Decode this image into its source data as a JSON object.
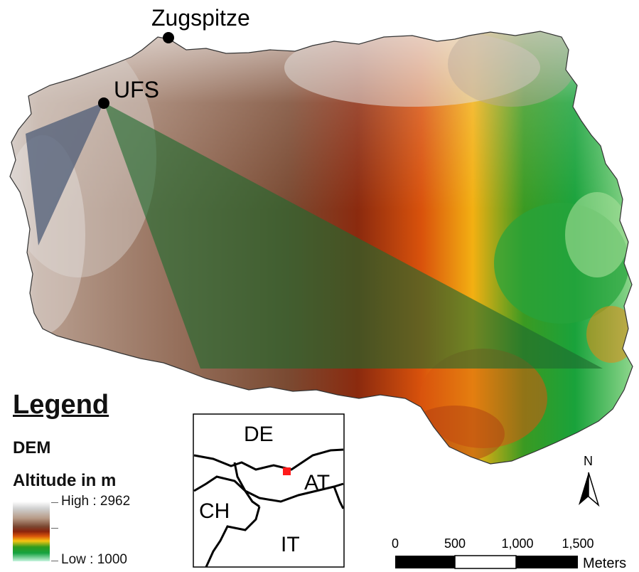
{
  "map": {
    "places": [
      {
        "name": "Zugspitze"
      },
      {
        "name": "UFS"
      }
    ]
  },
  "legend": {
    "title": "Legend",
    "layer": "DEM",
    "field": "Altitude in m",
    "high_label": "High : 2962",
    "low_label": "Low : 1000",
    "high_value": 2962,
    "low_value": 1000,
    "ramp_colors": [
      "#ffffff",
      "#d2d2d2",
      "#c3a693",
      "#7b4a30",
      "#8a2a0c",
      "#d8540a",
      "#f5b70f",
      "#2f9a1c",
      "#119a3a",
      "#bff2d6"
    ]
  },
  "inset": {
    "countries": [
      "DE",
      "AT",
      "CH",
      "IT"
    ],
    "marker_color": "#ff1a1a"
  },
  "scalebar": {
    "ticks": [
      "0",
      "500",
      "1,000",
      "1,500"
    ],
    "unit": "Meters"
  },
  "north_arrow": {
    "label": "N"
  },
  "viewshed_colors": {
    "grey": "#4d5c77",
    "green": "#1e6b2e"
  }
}
